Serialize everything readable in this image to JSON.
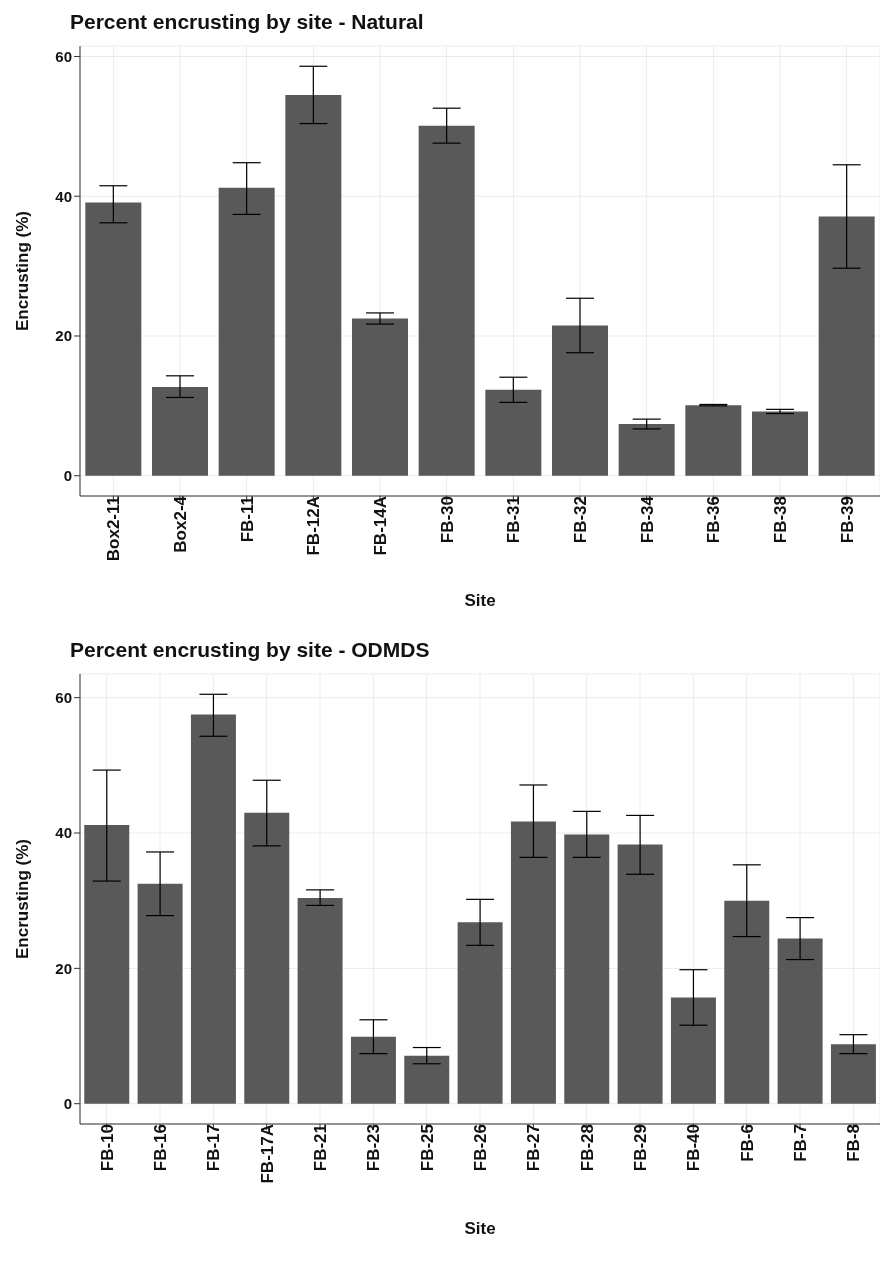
{
  "chart_data": [
    {
      "type": "bar",
      "title": "Percent encrusting by site - Natural",
      "xlabel": "Site",
      "ylabel": "Encrusting (%)",
      "categories": [
        "Box2-11",
        "Box2-4",
        "FB-11",
        "FB-12A",
        "FB-14A",
        "FB-30",
        "FB-31",
        "FB-32",
        "FB-34",
        "FB-36",
        "FB-38",
        "FB-39"
      ],
      "values": [
        39.1,
        12.7,
        41.2,
        54.5,
        22.5,
        50.1,
        12.3,
        21.5,
        7.4,
        10.1,
        9.2,
        37.1
      ],
      "errors": [
        [
          36.2,
          41.5
        ],
        [
          11.2,
          14.3
        ],
        [
          37.4,
          44.8
        ],
        [
          50.4,
          58.6
        ],
        [
          21.7,
          23.3
        ],
        [
          47.6,
          52.6
        ],
        [
          10.5,
          14.1
        ],
        [
          17.6,
          25.4
        ],
        [
          6.7,
          8.1
        ],
        [
          10.0,
          10.2
        ],
        [
          8.9,
          9.5
        ],
        [
          29.7,
          44.5
        ]
      ],
      "color": "#595959",
      "ylim": [
        -2.9,
        61.5
      ],
      "yticks": [
        0,
        20,
        40,
        60
      ],
      "grid": true
    },
    {
      "type": "bar",
      "title": "Percent encrusting by site - ODMDS",
      "xlabel": "Site",
      "ylabel": "Encrusting (%)",
      "categories": [
        "FB-10",
        "FB-16",
        "FB-17",
        "FB-17A",
        "FB-21",
        "FB-23",
        "FB-25",
        "FB-26",
        "FB-27",
        "FB-28",
        "FB-29",
        "FB-40",
        "FB-6",
        "FB-7",
        "FB-8"
      ],
      "values": [
        41.2,
        32.5,
        57.5,
        43.0,
        30.4,
        9.9,
        7.1,
        26.8,
        41.7,
        39.8,
        38.3,
        15.7,
        30.0,
        24.4,
        8.8
      ],
      "errors": [
        [
          32.9,
          49.3
        ],
        [
          27.8,
          37.2
        ],
        [
          54.3,
          60.5
        ],
        [
          38.1,
          47.8
        ],
        [
          29.3,
          31.6
        ],
        [
          7.4,
          12.4
        ],
        [
          5.9,
          8.3
        ],
        [
          23.4,
          30.2
        ],
        [
          36.4,
          47.1
        ],
        [
          36.4,
          43.2
        ],
        [
          33.9,
          42.6
        ],
        [
          11.6,
          19.8
        ],
        [
          24.7,
          35.3
        ],
        [
          21.3,
          27.5
        ],
        [
          7.4,
          10.2
        ]
      ],
      "color": "#595959",
      "ylim": [
        -3.0,
        63.5
      ],
      "yticks": [
        0,
        20,
        40,
        60
      ],
      "grid": true
    }
  ]
}
